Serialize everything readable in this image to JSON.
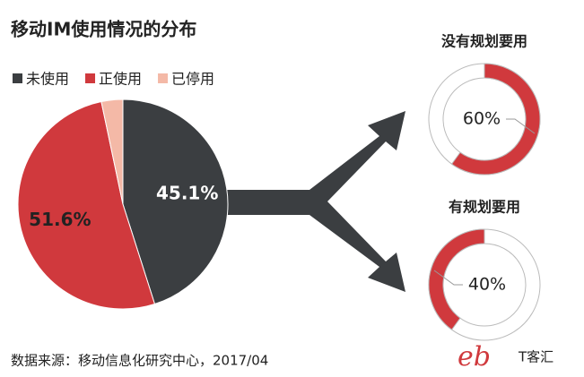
{
  "title": "移动IM使用情况的分布",
  "chart_data": [
    {
      "type": "pie",
      "categories": [
        "未使用",
        "正使用",
        "已停用"
      ],
      "values": [
        45.1,
        51.6,
        3.3
      ],
      "value_labels": [
        "45.1%",
        "51.6%",
        null
      ],
      "colors": [
        "#3b3e41",
        "#d0393d",
        "#f4b9a7"
      ],
      "legend": "top-left"
    },
    {
      "type": "donut",
      "title": "没有规划要用",
      "values": [
        60
      ],
      "value_labels": [
        "60%"
      ],
      "color": "#d0393d",
      "clockwise": true
    },
    {
      "type": "donut",
      "title": "有规划要用",
      "values": [
        40
      ],
      "value_labels": [
        "40%"
      ],
      "color": "#d0393d",
      "clockwise": false
    }
  ],
  "source": "数据来源：移动信息化研究中心，2017/04",
  "logo": "T客汇"
}
